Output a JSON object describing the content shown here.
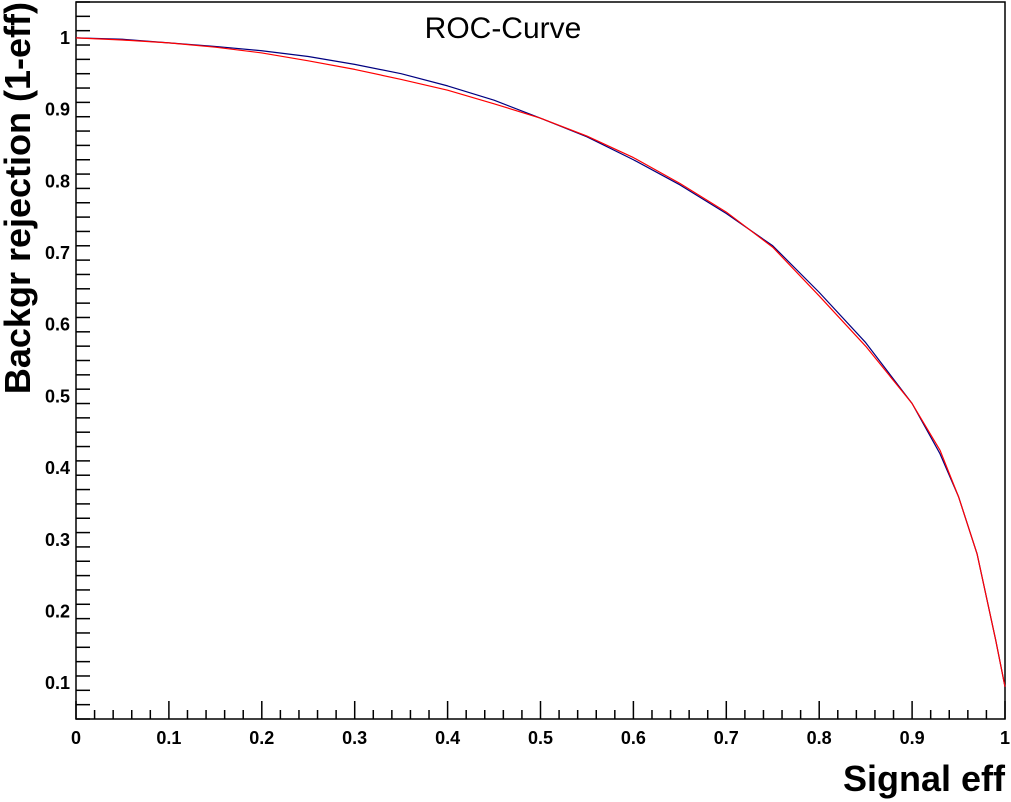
{
  "chart_data": {
    "type": "line",
    "title": "ROC-Curve",
    "xlabel": "Signal eff",
    "ylabel": "Backgr rejection (1-eff)",
    "xlim": [
      0,
      1
    ],
    "ylim": [
      0.05,
      1.05
    ],
    "x_ticks": [
      "0",
      "0.1",
      "0.2",
      "0.3",
      "0.4",
      "0.5",
      "0.6",
      "0.7",
      "0.8",
      "0.9",
      "1"
    ],
    "y_ticks": [
      "0.1",
      "0.2",
      "0.3",
      "0.4",
      "0.5",
      "0.6",
      "0.7",
      "0.8",
      "0.9",
      "1"
    ],
    "grid": false,
    "legend": "none",
    "series": [
      {
        "color": "#000080",
        "x": [
          0,
          0.05,
          0.1,
          0.15,
          0.2,
          0.25,
          0.3,
          0.35,
          0.4,
          0.45,
          0.5,
          0.55,
          0.6,
          0.65,
          0.7,
          0.75,
          0.8,
          0.85,
          0.9,
          0.93,
          0.95,
          0.97,
          0.98,
          0.99,
          1.0
        ],
        "y": [
          1.0,
          0.998,
          0.993,
          0.988,
          0.982,
          0.974,
          0.963,
          0.95,
          0.933,
          0.913,
          0.888,
          0.862,
          0.83,
          0.795,
          0.755,
          0.71,
          0.645,
          0.575,
          0.49,
          0.42,
          0.36,
          0.28,
          0.22,
          0.16,
          0.095
        ]
      },
      {
        "color": "#ff0000",
        "x": [
          0,
          0.05,
          0.1,
          0.15,
          0.2,
          0.25,
          0.3,
          0.35,
          0.4,
          0.45,
          0.5,
          0.55,
          0.6,
          0.65,
          0.7,
          0.75,
          0.8,
          0.85,
          0.9,
          0.93,
          0.95,
          0.97,
          0.98,
          0.99,
          1.0
        ],
        "y": [
          1.0,
          0.997,
          0.993,
          0.987,
          0.979,
          0.968,
          0.956,
          0.942,
          0.927,
          0.908,
          0.888,
          0.863,
          0.833,
          0.797,
          0.757,
          0.708,
          0.64,
          0.57,
          0.49,
          0.425,
          0.36,
          0.28,
          0.22,
          0.16,
          0.095
        ]
      }
    ]
  }
}
